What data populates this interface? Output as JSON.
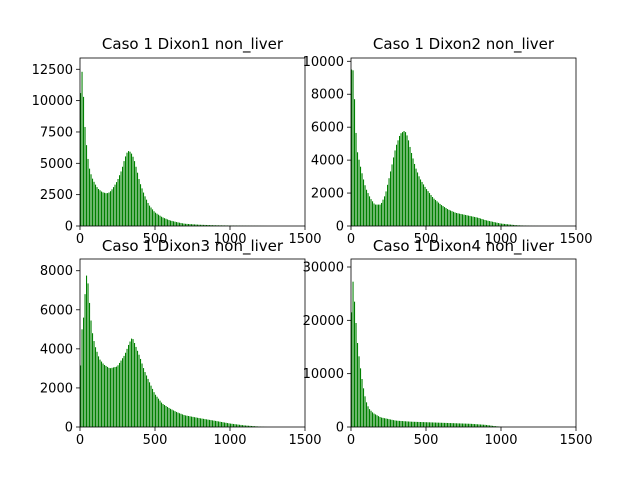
{
  "chart_data": [
    {
      "type": "bar",
      "title": "Caso 1 Dixon1 non_liver",
      "xlim": [
        0,
        1500
      ],
      "ylim": [
        0,
        13400
      ],
      "xticks": [
        0,
        500,
        1000,
        1500
      ],
      "yticks": [
        0,
        2500,
        5000,
        7500,
        10000,
        12500
      ],
      "xtick_labels": [
        "0",
        "500",
        "1000",
        "1500"
      ],
      "ytick_labels": [
        "0",
        "2500",
        "5000",
        "7500",
        "10000",
        "12500"
      ],
      "grid": false,
      "color": "#008000",
      "bin_width": 10,
      "profile_x": [
        0,
        10,
        20,
        30,
        40,
        60,
        80,
        100,
        120,
        150,
        180,
        200,
        220,
        250,
        280,
        300,
        320,
        340,
        360,
        380,
        400,
        430,
        460,
        500,
        550,
        600,
        650,
        700,
        800,
        900,
        1000,
        1100,
        1200,
        1250,
        1300
      ],
      "profile_y": [
        8400,
        12800,
        11800,
        8800,
        7000,
        4800,
        3900,
        3400,
        3000,
        2700,
        2600,
        2700,
        3000,
        3600,
        4500,
        5400,
        6000,
        5900,
        5400,
        4500,
        3500,
        2500,
        1700,
        1100,
        700,
        450,
        300,
        180,
        100,
        60,
        40,
        20,
        10,
        0,
        0
      ]
    },
    {
      "type": "bar",
      "title": "Caso 1 Dixon2 non_liver",
      "xlim": [
        0,
        1500
      ],
      "ylim": [
        0,
        10200
      ],
      "xticks": [
        0,
        500,
        1000,
        1500
      ],
      "yticks": [
        0,
        2000,
        4000,
        6000,
        8000,
        10000
      ],
      "xtick_labels": [
        "0",
        "500",
        "1000",
        "1500"
      ],
      "ytick_labels": [
        "0",
        "2000",
        "4000",
        "6000",
        "8000",
        "10000"
      ],
      "grid": false,
      "color": "#008000",
      "bin_width": 10,
      "profile_x": [
        0,
        10,
        20,
        30,
        40,
        60,
        80,
        100,
        130,
        160,
        200,
        230,
        260,
        300,
        330,
        360,
        380,
        400,
        430,
        460,
        500,
        550,
        600,
        650,
        700,
        800,
        850,
        900,
        1000,
        1100,
        1200,
        1300
      ],
      "profile_y": [
        8900,
        10100,
        8800,
        6600,
        4700,
        3800,
        3000,
        2300,
        1700,
        1300,
        1300,
        1900,
        3100,
        4800,
        5600,
        5800,
        5400,
        4600,
        3600,
        2900,
        2300,
        1700,
        1300,
        1000,
        800,
        600,
        500,
        350,
        150,
        50,
        10,
        0
      ]
    },
    {
      "type": "bar",
      "title": "Caso 1 Dixon3 non_liver",
      "xlim": [
        0,
        1500
      ],
      "ylim": [
        0,
        8600
      ],
      "xticks": [
        0,
        500,
        1000,
        1500
      ],
      "yticks": [
        0,
        2000,
        4000,
        6000,
        8000
      ],
      "xtick_labels": [
        "0",
        "500",
        "1000",
        "1500"
      ],
      "ytick_labels": [
        "0",
        "2000",
        "4000",
        "6000",
        "8000"
      ],
      "grid": false,
      "color": "#008000",
      "bin_width": 10,
      "profile_x": [
        0,
        10,
        20,
        30,
        40,
        50,
        60,
        80,
        100,
        130,
        160,
        200,
        250,
        300,
        330,
        350,
        370,
        400,
        430,
        470,
        500,
        550,
        600,
        650,
        700,
        800,
        900,
        1000,
        1100,
        1200,
        1250
      ],
      "profile_y": [
        1500,
        4800,
        5200,
        6000,
        7600,
        7900,
        6800,
        5000,
        4200,
        3500,
        3200,
        3000,
        3100,
        3700,
        4300,
        4600,
        4200,
        3600,
        2900,
        2200,
        1700,
        1200,
        950,
        750,
        600,
        450,
        320,
        180,
        80,
        20,
        0
      ]
    },
    {
      "type": "bar",
      "title": "Caso 1 Dixon4 non_liver",
      "xlim": [
        0,
        1500
      ],
      "ylim": [
        0,
        31500
      ],
      "xticks": [
        0,
        500,
        1000,
        1500
      ],
      "yticks": [
        0,
        10000,
        20000,
        30000
      ],
      "xtick_labels": [
        "0",
        "500",
        "1000",
        "1500"
      ],
      "ytick_labels": [
        "0",
        "10000",
        "20000",
        "30000"
      ],
      "grid": false,
      "color": "#008000",
      "bin_width": 10,
      "profile_x": [
        0,
        10,
        20,
        30,
        40,
        60,
        80,
        100,
        120,
        150,
        200,
        300,
        400,
        500,
        600,
        700,
        800,
        900,
        950,
        1000,
        1010
      ],
      "profile_y": [
        13500,
        29500,
        25000,
        22000,
        17000,
        12000,
        8000,
        5000,
        3500,
        2600,
        1800,
        1200,
        1000,
        900,
        800,
        700,
        600,
        400,
        200,
        50,
        0
      ]
    }
  ]
}
